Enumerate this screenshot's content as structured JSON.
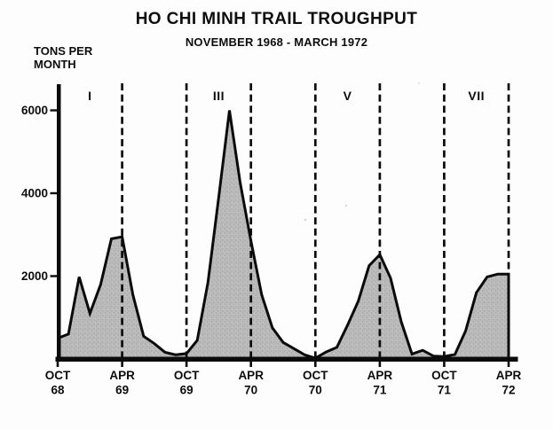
{
  "chart_data": {
    "type": "area",
    "title": "HO CHI MINH TRAIL TROUGHPUT",
    "subtitle": "NOVEMBER 1968 - MARCH 1972",
    "ylabel": "TONS PER\nMONTH",
    "xlabel": "",
    "grid": false,
    "legend": false,
    "ylim": [
      0,
      6600
    ],
    "y_ticks": [
      2000,
      4000,
      6000
    ],
    "x": [
      "OCT 68",
      "NOV 68",
      "DEC 68",
      "JAN 69",
      "FEB 69",
      "MAR 69",
      "APR 69",
      "MAY 69",
      "JUN 69",
      "JUL 69",
      "AUG 69",
      "SEP 69",
      "OCT 69",
      "NOV 69",
      "DEC 69",
      "JAN 70",
      "FEB 70",
      "MAR 70",
      "APR 70",
      "MAY 70",
      "JUN 70",
      "JUL 70",
      "AUG 70",
      "SEP 70",
      "OCT 70",
      "NOV 70",
      "DEC 70",
      "JAN 71",
      "FEB 71",
      "MAR 71",
      "APR 71",
      "MAY 71",
      "JUN 71",
      "JUL 71",
      "AUG 71",
      "SEP 71",
      "OCT 71",
      "NOV 71",
      "DEC 71",
      "JAN 72",
      "FEB 72",
      "MAR 72",
      "APR 72"
    ],
    "values": [
      500,
      600,
      1980,
      1100,
      1800,
      2900,
      2950,
      1550,
      550,
      370,
      160,
      100,
      130,
      450,
      1850,
      3900,
      6000,
      4250,
      2850,
      1550,
      750,
      400,
      250,
      100,
      20,
      170,
      280,
      820,
      1400,
      2250,
      2520,
      1950,
      900,
      120,
      210,
      70,
      60,
      110,
      680,
      1600,
      1980,
      2050,
      2050
    ],
    "x_ticks": [
      {
        "month_index": 0,
        "top": "OCT",
        "bottom": "68"
      },
      {
        "month_index": 6,
        "top": "APR",
        "bottom": "69"
      },
      {
        "month_index": 12,
        "top": "OCT",
        "bottom": "69"
      },
      {
        "month_index": 18,
        "top": "APR",
        "bottom": "70"
      },
      {
        "month_index": 24,
        "top": "OCT",
        "bottom": "70"
      },
      {
        "month_index": 30,
        "top": "APR",
        "bottom": "71"
      },
      {
        "month_index": 36,
        "top": "OCT",
        "bottom": "71"
      },
      {
        "month_index": 42,
        "top": "APR",
        "bottom": "72"
      }
    ],
    "dividers_month_index": [
      6,
      12,
      18,
      24,
      30,
      36,
      42
    ],
    "campaigns": [
      {
        "label": "I",
        "from_month": 0,
        "to_month": 6
      },
      {
        "label": "III",
        "from_month": 12,
        "to_month": 18
      },
      {
        "label": "V",
        "from_month": 24,
        "to_month": 30
      },
      {
        "label": "VII",
        "from_month": 36,
        "to_month": 42
      }
    ],
    "colors": {
      "line": "#0b0b0b",
      "fill": "#bcbcbc",
      "fill_dots": "#9c9c9c",
      "background": "#fdfdfd"
    }
  }
}
